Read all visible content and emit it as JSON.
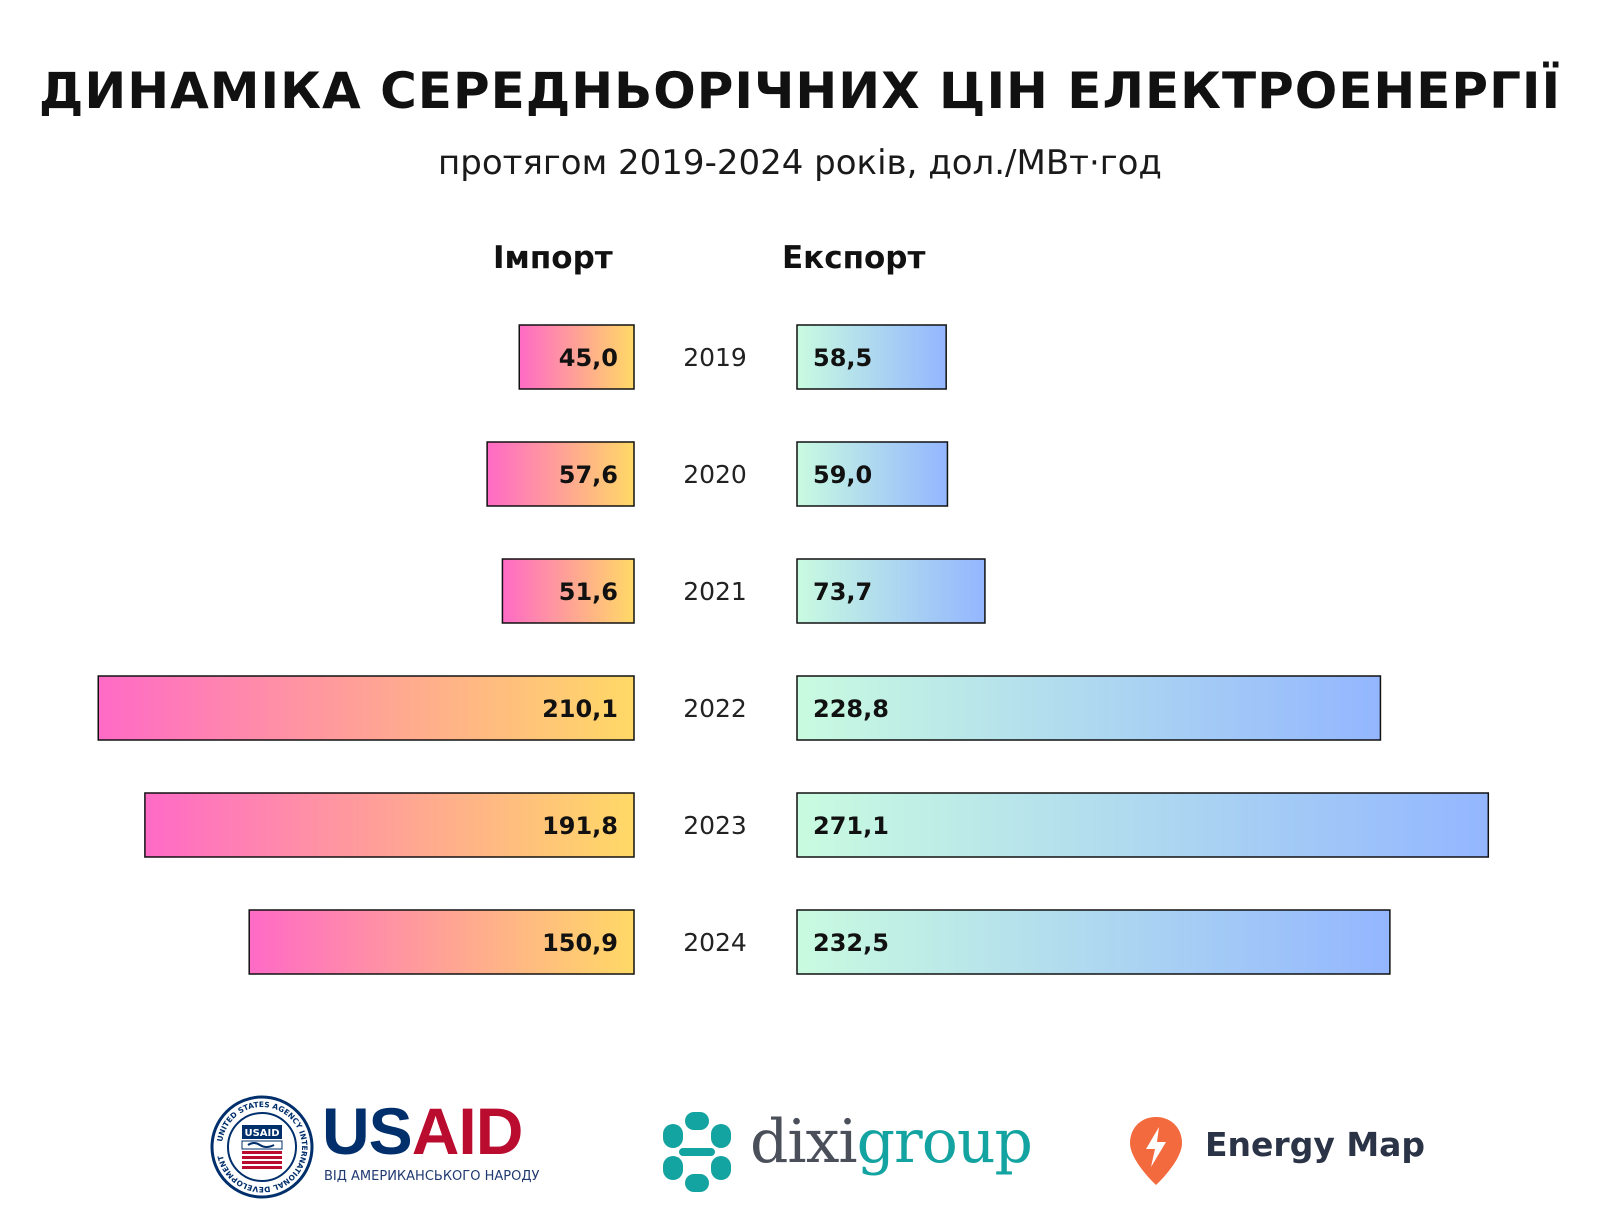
{
  "header": {
    "title": "ДИНАМІКА СЕРЕДНЬОРІЧНИХ ЦІН ЕЛЕКТРОЕНЕРГІЇ",
    "subtitle": "протягом 2019-2024 років, дол./МВт·год"
  },
  "chart_data": {
    "type": "bar",
    "orientation": "horizontal-diverging",
    "categories": [
      "2019",
      "2020",
      "2021",
      "2022",
      "2023",
      "2024"
    ],
    "series": [
      {
        "name": "Імпорт",
        "values": [
          45.0,
          57.6,
          51.6,
          210.1,
          191.8,
          150.9
        ],
        "labels": [
          "45,0",
          "57,6",
          "51,6",
          "210,1",
          "191,8",
          "150,9"
        ],
        "direction": "left",
        "gradient": [
          "#ff6ac6",
          "#ffd966"
        ]
      },
      {
        "name": "Експорт",
        "values": [
          58.5,
          59.0,
          73.7,
          228.8,
          271.1,
          232.5
        ],
        "labels": [
          "58,5",
          "59,0",
          "73,7",
          "228,8",
          "271,1",
          "232,5"
        ],
        "direction": "right",
        "gradient": [
          "#c9fbe0",
          "#93b6ff"
        ]
      }
    ],
    "grid": false,
    "legend": "column headers above bars"
  },
  "logos": {
    "usaid_name": "USAID",
    "usaid_subtitle": "ВІД АМЕРИКАНСЬКОГО НАРОДУ",
    "usaid_seal_text": "UNITED STATES AGENCY INTERNATIONAL DEVELOPMENT",
    "dixi_prefix": "dixi",
    "dixi_suffix": "group",
    "energy_map": "Energy Map",
    "colors": {
      "usaid_blue": "#002f6c",
      "usaid_red": "#ba0c2f",
      "dixi_gray": "#4a4f5a",
      "dixi_teal": "#13a3a0",
      "energy_orange": "#f26a3d"
    }
  }
}
